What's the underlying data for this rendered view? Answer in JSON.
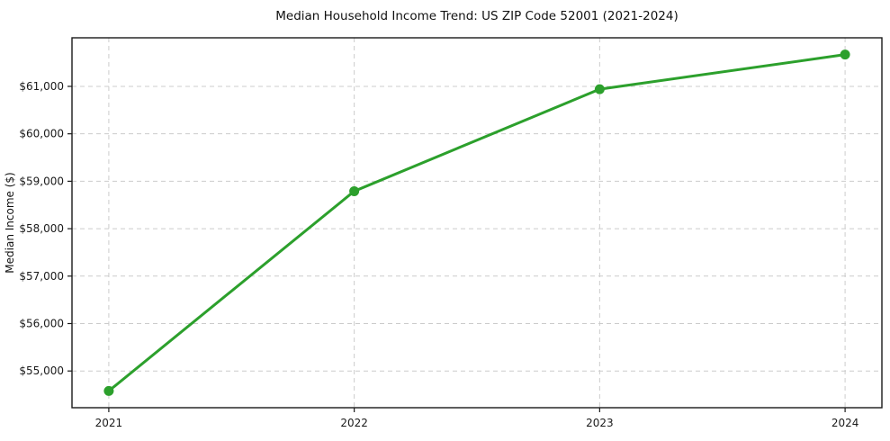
{
  "chart_data": {
    "type": "line",
    "title": "Median Household Income Trend: US ZIP Code 52001 (2021-2024)",
    "xlabel": "",
    "ylabel": "Median Income ($)",
    "x": [
      2021,
      2022,
      2023,
      2024
    ],
    "xtick_labels": [
      "2021",
      "2022",
      "2023",
      "2024"
    ],
    "series": [
      {
        "name": "Median household income",
        "values": [
          54580,
          58790,
          60940,
          61670
        ],
        "color": "#2ca02c",
        "marker": "circle",
        "marker_radius": 5.5,
        "line_width": 3
      }
    ],
    "yticks": [
      55000,
      56000,
      57000,
      58000,
      59000,
      60000,
      61000
    ],
    "ytick_labels": [
      "$55,000",
      "$56,000",
      "$57,000",
      "$58,000",
      "$59,000",
      "$60,000",
      "$61,000"
    ],
    "xlim": [
      2020.85,
      2024.15
    ],
    "ylim": [
      54226,
      62024
    ],
    "grid": true,
    "grid_style": "dashed",
    "grid_color": "#cccccc",
    "legend_position": "none",
    "background_color": "#ffffff"
  }
}
